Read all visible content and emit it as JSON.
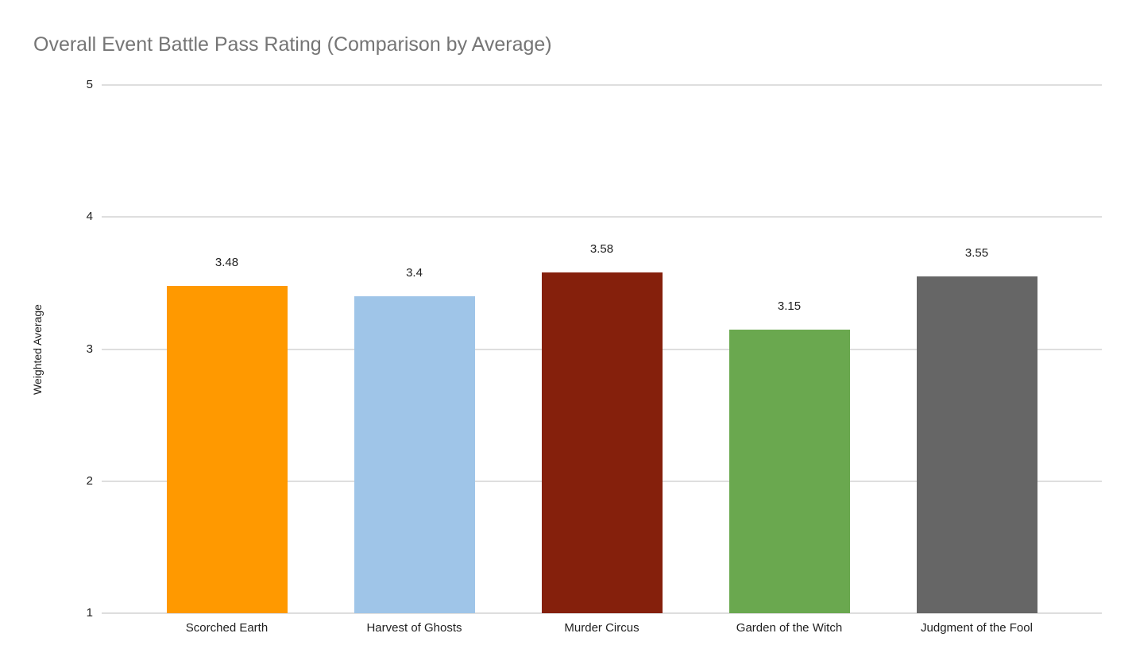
{
  "chart_data": {
    "type": "bar",
    "title": "Overall Event Battle Pass Rating (Comparison by Average)",
    "xlabel": "",
    "ylabel": "Weighted Average",
    "categories": [
      "Scorched Earth",
      "Harvest of Ghosts",
      "Murder Circus",
      "Garden of the Witch",
      "Judgment of the Fool"
    ],
    "values": [
      3.48,
      3.4,
      3.58,
      3.15,
      3.55
    ],
    "value_labels": [
      "3.48",
      "3.4",
      "3.58",
      "3.15",
      "3.55"
    ],
    "bar_colors": [
      "#FF9900",
      "#9FC5E8",
      "#85200C",
      "#6AA84F",
      "#666666"
    ],
    "ylim": [
      1,
      5
    ],
    "yticks": [
      1,
      2,
      3,
      4,
      5
    ],
    "grid": true,
    "legend": "none"
  },
  "colors": {
    "background": "#FFFFFF",
    "title_text": "#757575",
    "axis_text": "#212121",
    "gridline": "#DEDEDE"
  }
}
